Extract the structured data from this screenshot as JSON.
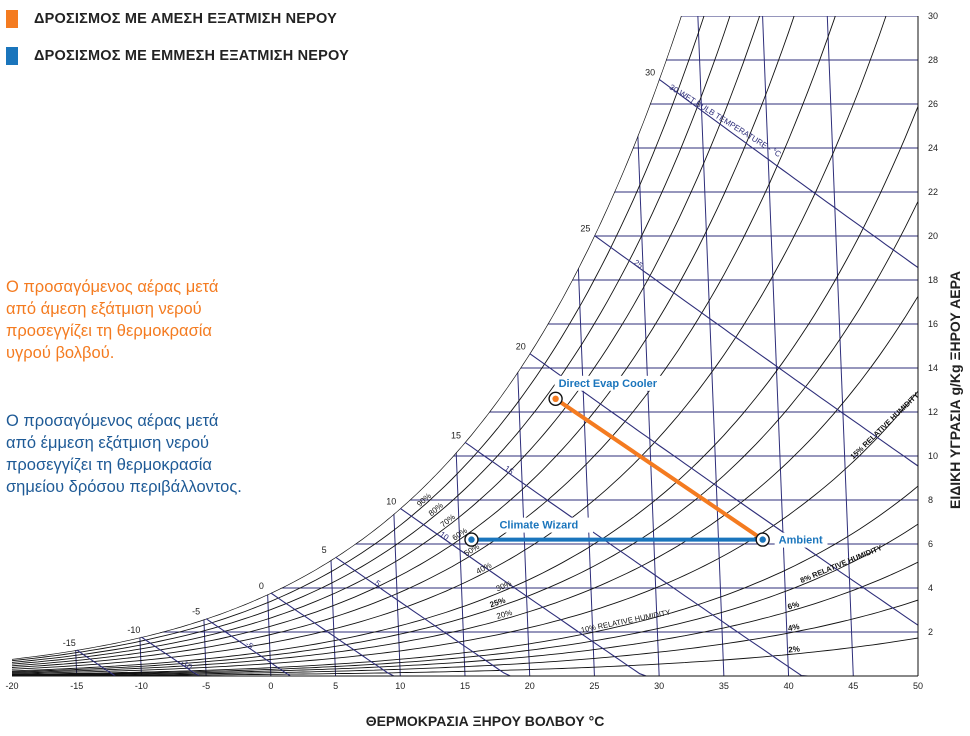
{
  "legend": [
    {
      "label": "ΔΡΟΣΙΣΜΟΣ ΜΕ ΑΜΕΣΗ ΕΞΑΤΜΙΣΗ ΝΕΡΟΥ",
      "color": "#f47b20"
    },
    {
      "label": "ΔΡΟΣΙΣΜΟΣ ΜΕ ΕΜΜΕΣΗ ΕΞΑΤΜΙΣΗ ΝΕΡΟΥ",
      "color": "#1a75bc"
    }
  ],
  "notes": {
    "direct": [
      "Ο προσαγόμενος αέρας μετά",
      "από άμεση εξάτμιση νερού",
      "προσεγγίζει τη θερμοκρασία",
      "υγρού βολβού."
    ],
    "indirect": [
      "Ο προσαγόμενος αέρας μετά",
      "από έμμεση εξάτμιση νερού",
      "προσεγγίζει τη θερμοκρασία",
      "σημείου δρόσου περιβάλλοντος."
    ],
    "direct_color": "#f47b20",
    "indirect_color": "#1e5a96"
  },
  "chart_data": {
    "type": "psychrometric",
    "xlabel": "ΘΕΡΜΟΚΡΑΣΙΑ ΞΗΡΟΥ ΒΟΛΒΟΥ °C",
    "ylabel": "ΕΙΔΙΚΗ ΥΓΡΑΣΙΑ g/Kg ΞΗΡΟΥ ΑΕΡΑ",
    "xlim": [
      -20,
      50
    ],
    "ylim": [
      0,
      30
    ],
    "x_ticks": [
      -20,
      -15,
      -10,
      -5,
      0,
      5,
      10,
      15,
      20,
      25,
      30,
      35,
      40,
      45,
      50
    ],
    "y_ticks": [
      2,
      4,
      6,
      8,
      10,
      12,
      14,
      16,
      18,
      20,
      22,
      24,
      26,
      28,
      30
    ],
    "wet_bulb_values": [
      -15,
      -10,
      -5,
      0,
      5,
      10,
      15,
      20,
      25,
      30
    ],
    "wet_bulb_inline_labels": [
      "-15",
      "-10",
      "-5",
      "5",
      "10",
      "15",
      "20",
      "25"
    ],
    "wet_bulb_axis_label": "30 WET BULB TEMPERATURE - °C",
    "rh_curves": [
      2,
      4,
      6,
      8,
      10,
      15,
      20,
      25,
      30,
      40,
      50,
      60,
      70,
      80,
      90,
      100
    ],
    "rh_labels": [
      {
        "text": "90%",
        "rh": 90
      },
      {
        "text": "80%",
        "rh": 80
      },
      {
        "text": "70%",
        "rh": 70
      },
      {
        "text": "60%",
        "rh": 60
      },
      {
        "text": "50%",
        "rh": 50
      },
      {
        "text": "40%",
        "rh": 40
      },
      {
        "text": "30%",
        "rh": 30
      },
      {
        "text": "20%",
        "rh": 20
      },
      {
        "text": "10% RELATIVE HUMIDITY",
        "rh": 10
      },
      {
        "text": "25%",
        "rh": 25
      },
      {
        "text": "15% RELATIVE HUMIDITY",
        "rh": 15
      },
      {
        "text": "8% RELATIVE HUMIDITY",
        "rh": 8
      },
      {
        "text": "6%",
        "rh": 6
      },
      {
        "text": "4%",
        "rh": 4
      },
      {
        "text": "2%",
        "rh": 2
      }
    ],
    "process_points": [
      {
        "name": "Ambient",
        "x": 38,
        "y": 6.2
      },
      {
        "name": "Direct Evap Cooler",
        "x": 22,
        "y": 12.6
      },
      {
        "name": "Climate Wizard",
        "x": 15.5,
        "y": 6.2
      }
    ],
    "processes": [
      {
        "from": "Ambient",
        "to": "Direct Evap Cooler",
        "color": "#f47b20"
      },
      {
        "from": "Ambient",
        "to": "Climate Wizard",
        "color": "#1a75bc"
      }
    ],
    "grid_color": "#2e2e7a",
    "rh_color": "#111111",
    "label_color": "#1a75bc"
  }
}
